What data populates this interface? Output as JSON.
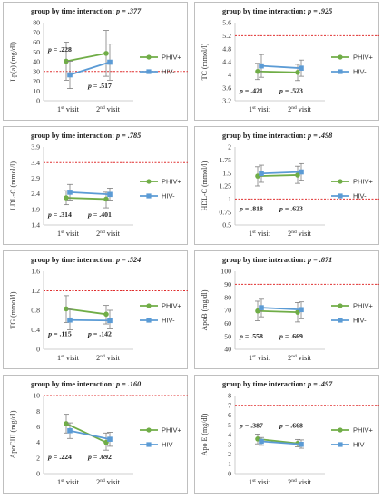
{
  "colors": {
    "phiv": "#70ad47",
    "hiv": "#5b9bd5",
    "reference": "#e03030",
    "error": "#7f7f7f"
  },
  "legend": {
    "phiv": "PHIV+",
    "hiv": "HIV-"
  },
  "chart_data": [
    {
      "type": "line",
      "title": "group by time interaction: p = .377",
      "ylabel": "Lp(a) (mg/dl)",
      "ylim": [
        0,
        80
      ],
      "yticks": [
        "0",
        "10",
        "20",
        "30",
        "40",
        "50",
        "60",
        "70",
        "80"
      ],
      "categories": [
        "1st visit",
        "2nd visit"
      ],
      "reference_line": 30,
      "series": [
        {
          "name": "PHIV+",
          "values": [
            40.5,
            48.5
          ],
          "error": [
            [
              21,
              60
            ],
            [
              25,
              72
            ]
          ]
        },
        {
          "name": "HIV-",
          "values": [
            26.5,
            39.5
          ],
          "error": [
            [
              12.5,
              40.5
            ],
            [
              21,
              58
            ]
          ]
        }
      ],
      "p_labels": [
        {
          "text": "p = .228",
          "category": 0,
          "y": 53
        },
        {
          "text": "p = .517",
          "category": 1,
          "y": 16
        }
      ],
      "grid": false,
      "legend": "right"
    },
    {
      "type": "line",
      "title": "group by time interaction: p = .925",
      "ylabel": "TC (mmol/l)",
      "ylim": [
        3.2,
        5.6
      ],
      "yticks": [
        "3.2",
        "3.6",
        "4",
        "4.4",
        "4.8",
        "5.2",
        "5.6"
      ],
      "categories": [
        "1st visit",
        "2nd visit"
      ],
      "reference_line": 5.2,
      "series": [
        {
          "name": "PHIV+",
          "values": [
            4.1,
            4.07
          ],
          "error": [
            [
              3.85,
              4.35
            ],
            [
              3.82,
              4.32
            ]
          ]
        },
        {
          "name": "HIV-",
          "values": [
            4.27,
            4.2
          ],
          "error": [
            [
              3.92,
              4.62
            ],
            [
              3.95,
              4.45
            ]
          ]
        }
      ],
      "p_labels": [
        {
          "text": "p = .421",
          "category": 0,
          "y": 3.52
        },
        {
          "text": "p = .523",
          "category": 1,
          "y": 3.52
        }
      ],
      "grid": false,
      "legend": "right"
    },
    {
      "type": "line",
      "title": "group by time interaction: p = .785",
      "ylabel": "LDL-C (mmol/l)",
      "ylim": [
        1.4,
        3.9
      ],
      "yticks": [
        "1.4",
        "1.9",
        "2.4",
        "2.9",
        "3.4",
        "3.9"
      ],
      "categories": [
        "1st visit",
        "2nd visit"
      ],
      "reference_line": 3.4,
      "series": [
        {
          "name": "PHIV+",
          "values": [
            2.27,
            2.23
          ],
          "error": [
            [
              2.05,
              2.5
            ],
            [
              1.95,
              2.45
            ]
          ]
        },
        {
          "name": "HIV-",
          "values": [
            2.45,
            2.38
          ],
          "error": [
            [
              2.2,
              2.7
            ],
            [
              2.2,
              2.58
            ]
          ]
        }
      ],
      "p_labels": [
        {
          "text": "p = .314",
          "category": 0,
          "y": 1.75
        },
        {
          "text": "p = .401",
          "category": 1,
          "y": 1.75
        }
      ],
      "grid": false,
      "legend": "right"
    },
    {
      "type": "line",
      "title": "group by time interaction: p = .498",
      "ylabel": "HDL-C (mmol/l)",
      "ylim": [
        0.5,
        2
      ],
      "yticks": [
        "0.5",
        "0.75",
        "1",
        "1.25",
        "1.5",
        "1.75",
        "2"
      ],
      "categories": [
        "1st visit",
        "2nd visit"
      ],
      "reference_line": 1,
      "series": [
        {
          "name": "PHIV+",
          "values": [
            1.44,
            1.46
          ],
          "error": [
            [
              1.25,
              1.62
            ],
            [
              1.3,
              1.63
            ]
          ]
        },
        {
          "name": "HIV-",
          "values": [
            1.49,
            1.52
          ],
          "error": [
            [
              1.32,
              1.65
            ],
            [
              1.36,
              1.68
            ]
          ]
        }
      ],
      "p_labels": [
        {
          "text": "p = .818",
          "category": 0,
          "y": 0.82
        },
        {
          "text": "p = .623",
          "category": 1,
          "y": 0.82
        }
      ],
      "grid": false,
      "legend": "right"
    },
    {
      "type": "line",
      "title": "group by time interaction: p = .524",
      "ylabel": "TG (mmol/l)",
      "ylim": [
        0,
        1.6
      ],
      "yticks": [
        "0",
        "0.4",
        "0.8",
        "1.2",
        "1.6"
      ],
      "categories": [
        "1st visit",
        "2nd visit"
      ],
      "reference_line": 1.2,
      "series": [
        {
          "name": "PHIV+",
          "values": [
            0.83,
            0.72
          ],
          "error": [
            [
              0.55,
              1.1
            ],
            [
              0.52,
              0.9
            ]
          ]
        },
        {
          "name": "HIV-",
          "values": [
            0.6,
            0.59
          ],
          "error": [
            [
              0.4,
              0.82
            ],
            [
              0.42,
              0.8
            ]
          ]
        }
      ],
      "p_labels": [
        {
          "text": "p = .115",
          "category": 0,
          "y": 0.33
        },
        {
          "text": "p = .142",
          "category": 1,
          "y": 0.33
        }
      ],
      "grid": false,
      "legend": "right"
    },
    {
      "type": "line",
      "title": "group by time interaction: p = .871",
      "ylabel": "ApoB (mg/dl)",
      "ylim": [
        40,
        100
      ],
      "yticks": [
        "40",
        "50",
        "60",
        "70",
        "80",
        "90",
        "100"
      ],
      "categories": [
        "1st visit",
        "2nd visit"
      ],
      "reference_line": 90,
      "series": [
        {
          "name": "PHIV+",
          "values": [
            69.5,
            68.5
          ],
          "error": [
            [
              62,
              77
            ],
            [
              61,
              76
            ]
          ]
        },
        {
          "name": "HIV-",
          "values": [
            72,
            70.5
          ],
          "error": [
            [
              65,
              78.5
            ],
            [
              63.5,
              76.5
            ]
          ]
        }
      ],
      "p_labels": [
        {
          "text": "p = .558",
          "category": 0,
          "y": 50.5
        },
        {
          "text": "p = .669",
          "category": 1,
          "y": 50.5
        }
      ],
      "grid": false,
      "legend": "right"
    },
    {
      "type": "line",
      "title": "group by time interaction: p = .160",
      "ylabel": "ApoCIII (mg/dl)",
      "ylim": [
        0,
        10
      ],
      "yticks": [
        "0",
        "2",
        "4",
        "6",
        "8",
        "10"
      ],
      "categories": [
        "1st visit",
        "2nd visit"
      ],
      "reference_line": 10,
      "series": [
        {
          "name": "PHIV+",
          "values": [
            6.4,
            4.0
          ],
          "error": [
            [
              5.2,
              7.6
            ],
            [
              3.0,
              5.2
            ]
          ]
        },
        {
          "name": "HIV-",
          "values": [
            5.5,
            4.4
          ],
          "error": [
            [
              4.5,
              6.5
            ],
            [
              3.5,
              5.3
            ]
          ]
        }
      ],
      "p_labels": [
        {
          "text": "p = .224",
          "category": 0,
          "y": 2.2
        },
        {
          "text": "p = .692",
          "category": 1,
          "y": 2.2
        }
      ],
      "grid": false,
      "legend": "right"
    },
    {
      "type": "line",
      "title": "group by time interaction: p = .497",
      "ylabel": "Apo E (mg/dl)",
      "ylim": [
        0,
        8
      ],
      "yticks": [
        "0",
        "1",
        "2",
        "3",
        "4",
        "5",
        "6",
        "7",
        "8"
      ],
      "categories": [
        "1st visit",
        "2nd visit"
      ],
      "reference_line": 7,
      "series": [
        {
          "name": "PHIV+",
          "values": [
            3.55,
            3.1
          ],
          "error": [
            [
              3.05,
              4.05
            ],
            [
              2.75,
              3.5
            ]
          ]
        },
        {
          "name": "HIV-",
          "values": [
            3.3,
            3.0
          ],
          "error": [
            [
              2.9,
              3.7
            ],
            [
              2.6,
              3.45
            ]
          ]
        }
      ],
      "p_labels": [
        {
          "text": "p = .387",
          "category": 0,
          "y": 5.0
        },
        {
          "text": "p = .668",
          "category": 1,
          "y": 5.0
        }
      ],
      "grid": false,
      "legend": "right"
    }
  ]
}
